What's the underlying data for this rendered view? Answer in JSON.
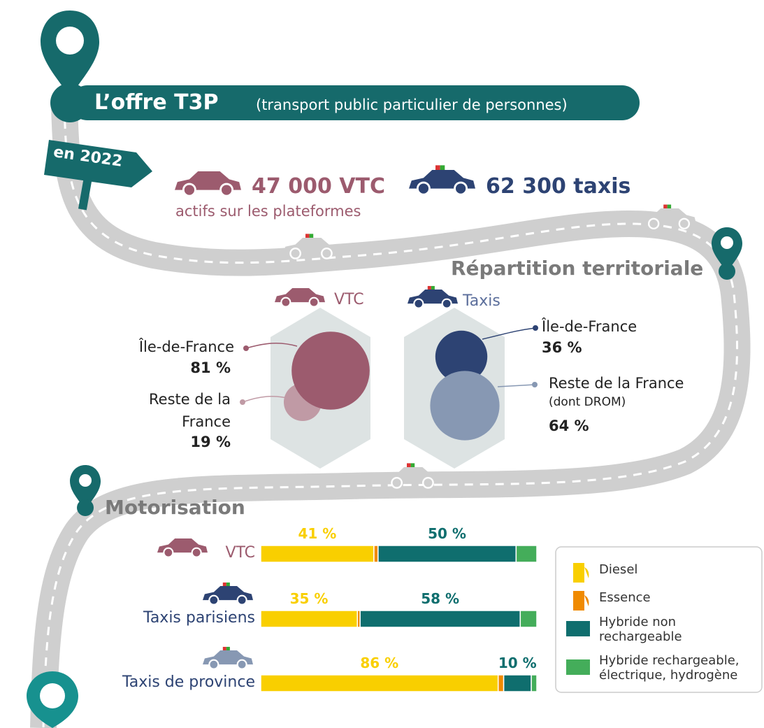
{
  "header": {
    "title": "L’offre T3P",
    "subtitle": "(transport public particulier de personnes)"
  },
  "year_sign": "en 2022",
  "stats": [
    {
      "text": "47 000 VTC",
      "note": "actifs sur les plateformes",
      "color": "#9c5b6e"
    },
    {
      "text": "62 300 taxis",
      "color": "#2d4373"
    }
  ],
  "repartition": {
    "title": "Répartition territoriale",
    "groups": [
      {
        "name": "VTC",
        "color": "#9c5b6e",
        "regions": [
          {
            "label": "Île-de-France",
            "value": 81,
            "value_label": "81 %",
            "color": "#9c5b6e"
          },
          {
            "label": "Reste de la France",
            "value": 19,
            "value_label": "19 %",
            "color": "#c09aa5"
          }
        ]
      },
      {
        "name": "Taxis",
        "color": "#5b6e9b",
        "regions": [
          {
            "label": "Île-de-France",
            "value": 36,
            "value_label": "36 %",
            "color": "#2d4373"
          },
          {
            "label": "Reste de la France",
            "note": "(dont DROM)",
            "value": 64,
            "value_label": "64 %",
            "color": "#8798b3"
          }
        ]
      }
    ]
  },
  "motorisation": {
    "title": "Motorisation",
    "legend": [
      {
        "label": "Diesel",
        "color": "#f9cf00"
      },
      {
        "label": "Essence",
        "color": "#f08a00"
      },
      {
        "label": "Hybride non rechargeable",
        "color": "#0f6e6e"
      },
      {
        "label": "Hybride rechargeable, électrique, hydrogène",
        "color": "#44ad5a"
      }
    ],
    "rows": [
      {
        "name": "VTC",
        "color": "#9c5b6e",
        "values": [
          41,
          1.5,
          50,
          7.5
        ],
        "value_labels": [
          "41 %",
          null,
          "50 %",
          null
        ]
      },
      {
        "name": "Taxis parisiens",
        "color": "#2d4373",
        "values": [
          35,
          1,
          58,
          6
        ],
        "value_labels": [
          "35 %",
          null,
          "58 %",
          null
        ]
      },
      {
        "name": "Taxis de province",
        "color": "#2d4373",
        "values": [
          86,
          2,
          10,
          2
        ],
        "value_labels": [
          "86 %",
          null,
          "10 %",
          null
        ]
      }
    ]
  }
}
